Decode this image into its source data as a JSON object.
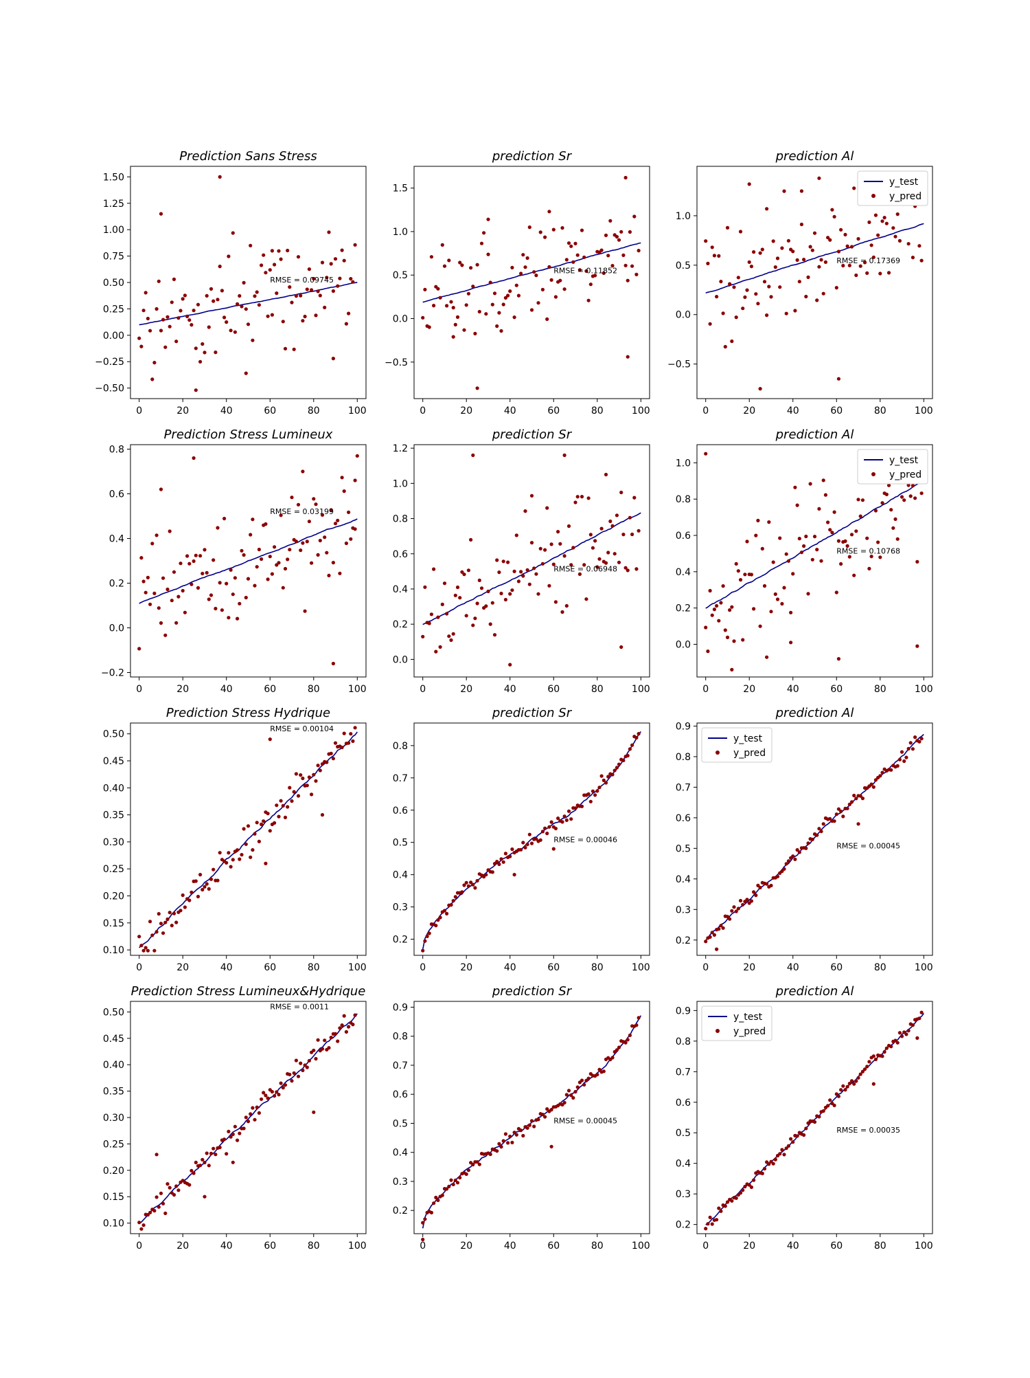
{
  "figure": {
    "line_color": "#00008b",
    "point_color": "#8b0000",
    "x_ticks": [
      "0",
      "20",
      "40",
      "60",
      "80",
      "100"
    ]
  },
  "chart_data": [
    {
      "type": "scatter",
      "title": "Prediction Sans Stress",
      "xlim": [
        -4,
        104
      ],
      "ylim": [
        -0.6,
        1.6
      ],
      "yticks": [
        "−0.50",
        "−0.25",
        "0.00",
        "0.25",
        "0.50",
        "0.75",
        "1.00",
        "1.25",
        "1.50"
      ],
      "rmse": "RMSE = 0.09745",
      "rmse_pos": [
        60,
        0.5
      ],
      "legend": null,
      "trend": {
        "kind": "noisy",
        "seed": 11,
        "amp": 0.9,
        "outliers": [
          [
            37,
            1.5
          ],
          [
            10,
            1.15
          ],
          [
            26,
            -0.52
          ],
          [
            49,
            -0.36
          ],
          [
            61,
            0.8
          ],
          [
            89,
            -0.22
          ]
        ]
      },
      "series": [
        {
          "name": "y_test",
          "style": "line",
          "x0": 0,
          "x1": 100,
          "y0": 0.1,
          "y1": 0.5,
          "curve": 0
        },
        {
          "name": "y_pred",
          "style": "scatter"
        }
      ]
    },
    {
      "type": "scatter",
      "title": "prediction Sr",
      "xlim": [
        -4,
        104
      ],
      "ylim": [
        -0.92,
        1.75
      ],
      "yticks": [
        "−0.5",
        "0.0",
        "0.5",
        "1.0",
        "1.5"
      ],
      "rmse": "RMSE = 0.11852",
      "rmse_pos": [
        60,
        0.52
      ],
      "legend": null,
      "trend": {
        "kind": "noisy",
        "seed": 23,
        "amp": 1.0,
        "outliers": [
          [
            93,
            1.62
          ],
          [
            58,
            1.23
          ],
          [
            30,
            1.14
          ],
          [
            25,
            -0.8
          ],
          [
            94,
            -0.44
          ],
          [
            14,
            -0.21
          ]
        ]
      },
      "series": [
        {
          "name": "y_test",
          "style": "line",
          "x0": 0,
          "x1": 100,
          "y0": 0.19,
          "y1": 0.87,
          "curve": 0
        },
        {
          "name": "y_pred",
          "style": "scatter"
        }
      ]
    },
    {
      "type": "scatter",
      "title": "prediction Al",
      "xlim": [
        -4,
        104
      ],
      "ylim": [
        -0.85,
        1.5
      ],
      "yticks": [
        "−0.5",
        "0.0",
        "0.5",
        "1.0"
      ],
      "rmse": "RMSE = 0.17369",
      "rmse_pos": [
        60,
        0.52
      ],
      "legend": {
        "pos": "top-right",
        "items": [
          "y_test",
          "y_pred"
        ]
      },
      "trend": {
        "kind": "noisy",
        "seed": 37,
        "amp": 1.0,
        "outliers": [
          [
            52,
            1.38
          ],
          [
            20,
            1.32
          ],
          [
            25,
            -0.75
          ],
          [
            61,
            -0.65
          ],
          [
            44,
            1.25
          ],
          [
            28,
            1.07
          ]
        ]
      },
      "series": [
        {
          "name": "y_test",
          "style": "line",
          "x0": 0,
          "x1": 100,
          "y0": 0.22,
          "y1": 0.92,
          "curve": 0
        },
        {
          "name": "y_pred",
          "style": "scatter"
        }
      ]
    },
    {
      "type": "scatter",
      "title": "Prediction Stress Lumineux",
      "xlim": [
        -4,
        104
      ],
      "ylim": [
        -0.22,
        0.82
      ],
      "yticks": [
        "−0.2",
        "0.0",
        "0.2",
        "0.4",
        "0.6",
        "0.8"
      ],
      "rmse": "RMSE = 0.03199",
      "rmse_pos": [
        60,
        0.51
      ],
      "legend": null,
      "trend": {
        "kind": "noisy",
        "seed": 51,
        "amp": 0.45,
        "outliers": [
          [
            25,
            0.76
          ],
          [
            100,
            0.77
          ],
          [
            10,
            0.62
          ],
          [
            75,
            0.7
          ],
          [
            89,
            -0.16
          ],
          [
            99,
            0.66
          ]
        ]
      },
      "series": [
        {
          "name": "y_test",
          "style": "line",
          "x0": 0,
          "x1": 100,
          "y0": 0.11,
          "y1": 0.49,
          "curve": 0
        },
        {
          "name": "y_pred",
          "style": "scatter"
        }
      ]
    },
    {
      "type": "scatter",
      "title": "prediction Sr",
      "xlim": [
        -4,
        104
      ],
      "ylim": [
        -0.1,
        1.22
      ],
      "yticks": [
        "0.0",
        "0.2",
        "0.4",
        "0.6",
        "0.8",
        "1.0",
        "1.2"
      ],
      "rmse": "RMSE = 0.06948",
      "rmse_pos": [
        60,
        0.5
      ],
      "legend": null,
      "trend": {
        "kind": "noisy",
        "seed": 67,
        "amp": 0.55,
        "outliers": [
          [
            23,
            1.16
          ],
          [
            65,
            1.16
          ],
          [
            84,
            1.05
          ],
          [
            50,
            0.93
          ],
          [
            40,
            -0.03
          ],
          [
            91,
            0.07
          ]
        ]
      },
      "series": [
        {
          "name": "y_test",
          "style": "line",
          "x0": 0,
          "x1": 100,
          "y0": 0.2,
          "y1": 0.83,
          "curve": 0
        },
        {
          "name": "y_pred",
          "style": "scatter"
        }
      ]
    },
    {
      "type": "scatter",
      "title": "prediction Al",
      "xlim": [
        -4,
        104
      ],
      "ylim": [
        -0.18,
        1.1
      ],
      "yticks": [
        "0.0",
        "0.2",
        "0.4",
        "0.6",
        "0.8",
        "1.0"
      ],
      "rmse": "RMSE = 0.10768",
      "rmse_pos": [
        60,
        0.5
      ],
      "legend": {
        "pos": "top-right",
        "items": [
          "y_test",
          "y_pred"
        ]
      },
      "trend": {
        "kind": "noisy",
        "seed": 79,
        "amp": 0.65,
        "outliers": [
          [
            0,
            1.05
          ],
          [
            12,
            -0.14
          ],
          [
            61,
            -0.08
          ],
          [
            97,
            -0.01
          ],
          [
            39,
            0.01
          ]
        ]
      },
      "series": [
        {
          "name": "y_test",
          "style": "line",
          "x0": 0,
          "x1": 100,
          "y0": 0.2,
          "y1": 0.9,
          "curve": 0
        },
        {
          "name": "y_pred",
          "style": "scatter"
        }
      ]
    },
    {
      "type": "scatter",
      "title": "Prediction Stress Hydrique",
      "xlim": [
        -4,
        104
      ],
      "ylim": [
        0.09,
        0.52
      ],
      "yticks": [
        "0.10",
        "0.15",
        "0.20",
        "0.25",
        "0.30",
        "0.35",
        "0.40",
        "0.45",
        "0.50"
      ],
      "rmse": "RMSE = 0.00104",
      "rmse_pos": [
        60,
        0.505
      ],
      "legend": null,
      "trend": {
        "kind": "tight",
        "seed": 91,
        "amp": 0.05,
        "outliers": [
          [
            60,
            0.49
          ],
          [
            58,
            0.26
          ],
          [
            84,
            0.35
          ]
        ]
      },
      "series": [
        {
          "name": "y_test",
          "style": "line",
          "x0": 0,
          "x1": 100,
          "y0": 0.105,
          "y1": 0.505,
          "curve": 0
        },
        {
          "name": "y_pred",
          "style": "scatter"
        }
      ]
    },
    {
      "type": "scatter",
      "title": "prediction Sr",
      "xlim": [
        -4,
        104
      ],
      "ylim": [
        0.15,
        0.87
      ],
      "yticks": [
        "0.2",
        "0.3",
        "0.4",
        "0.5",
        "0.6",
        "0.7",
        "0.8"
      ],
      "rmse": "RMSE = 0.00046",
      "rmse_pos": [
        60,
        0.5
      ],
      "legend": null,
      "trend": {
        "kind": "tight",
        "seed": 103,
        "amp": 0.035,
        "outliers": [
          [
            42,
            0.4
          ],
          [
            60,
            0.48
          ]
        ]
      },
      "series": [
        {
          "name": "y_test",
          "style": "line",
          "x0": 0,
          "x1": 100,
          "y0": 0.17,
          "y1": 0.84,
          "curve": 1
        },
        {
          "name": "y_pred",
          "style": "scatter"
        }
      ]
    },
    {
      "type": "scatter",
      "title": "prediction Al",
      "xlim": [
        -4,
        104
      ],
      "ylim": [
        0.15,
        0.91
      ],
      "yticks": [
        "0.2",
        "0.3",
        "0.4",
        "0.5",
        "0.6",
        "0.7",
        "0.8",
        "0.9"
      ],
      "rmse": "RMSE = 0.00045",
      "rmse_pos": [
        60,
        0.5
      ],
      "legend": {
        "pos": "top-left",
        "items": [
          "y_test",
          "y_pred"
        ]
      },
      "trend": {
        "kind": "tight",
        "seed": 117,
        "amp": 0.03,
        "outliers": [
          [
            5,
            0.17
          ],
          [
            70,
            0.58
          ]
        ]
      },
      "series": [
        {
          "name": "y_test",
          "style": "line",
          "x0": 0,
          "x1": 100,
          "y0": 0.2,
          "y1": 0.87,
          "curve": 0
        },
        {
          "name": "y_pred",
          "style": "scatter"
        }
      ]
    },
    {
      "type": "scatter",
      "title": "Prediction Stress Lumineux&Hydrique",
      "xlim": [
        -4,
        104
      ],
      "ylim": [
        0.08,
        0.52
      ],
      "yticks": [
        "0.10",
        "0.15",
        "0.20",
        "0.25",
        "0.30",
        "0.35",
        "0.40",
        "0.45",
        "0.50"
      ],
      "rmse": "RMSE = 0.0011",
      "rmse_pos": [
        60,
        0.505
      ],
      "legend": null,
      "trend": {
        "kind": "tight",
        "seed": 131,
        "amp": 0.035,
        "outliers": [
          [
            43,
            0.215
          ],
          [
            8,
            0.23
          ],
          [
            80,
            0.31
          ],
          [
            30,
            0.15
          ]
        ]
      },
      "series": [
        {
          "name": "y_test",
          "style": "line",
          "x0": 0,
          "x1": 100,
          "y0": 0.1,
          "y1": 0.495,
          "curve": 0
        },
        {
          "name": "y_pred",
          "style": "scatter"
        }
      ]
    },
    {
      "type": "scatter",
      "title": "prediction Sr",
      "xlim": [
        -4,
        104
      ],
      "ylim": [
        0.12,
        0.92
      ],
      "yticks": [
        "0.2",
        "0.3",
        "0.4",
        "0.5",
        "0.6",
        "0.7",
        "0.8",
        "0.9"
      ],
      "rmse": "RMSE = 0.00045",
      "rmse_pos": [
        60,
        0.5
      ],
      "legend": null,
      "trend": {
        "kind": "tight",
        "seed": 149,
        "amp": 0.03,
        "outliers": [
          [
            59,
            0.42
          ],
          [
            0,
            0.1
          ]
        ]
      },
      "series": [
        {
          "name": "y_test",
          "style": "line",
          "x0": 0,
          "x1": 100,
          "y0": 0.14,
          "y1": 0.87,
          "curve": 1
        },
        {
          "name": "y_pred",
          "style": "scatter"
        }
      ]
    },
    {
      "type": "scatter",
      "title": "prediction Al",
      "xlim": [
        -4,
        104
      ],
      "ylim": [
        0.17,
        0.93
      ],
      "yticks": [
        "0.2",
        "0.3",
        "0.4",
        "0.5",
        "0.6",
        "0.7",
        "0.8",
        "0.9"
      ],
      "rmse": "RMSE = 0.00035",
      "rmse_pos": [
        60,
        0.5
      ],
      "legend": {
        "pos": "top-left",
        "items": [
          "y_test",
          "y_pred"
        ]
      },
      "trend": {
        "kind": "tight",
        "seed": 163,
        "amp": 0.025,
        "outliers": [
          [
            77,
            0.66
          ],
          [
            97,
            0.81
          ]
        ]
      },
      "series": [
        {
          "name": "y_test",
          "style": "line",
          "x0": 0,
          "x1": 100,
          "y0": 0.2,
          "y1": 0.89,
          "curve": 0
        },
        {
          "name": "y_pred",
          "style": "scatter"
        }
      ]
    }
  ]
}
